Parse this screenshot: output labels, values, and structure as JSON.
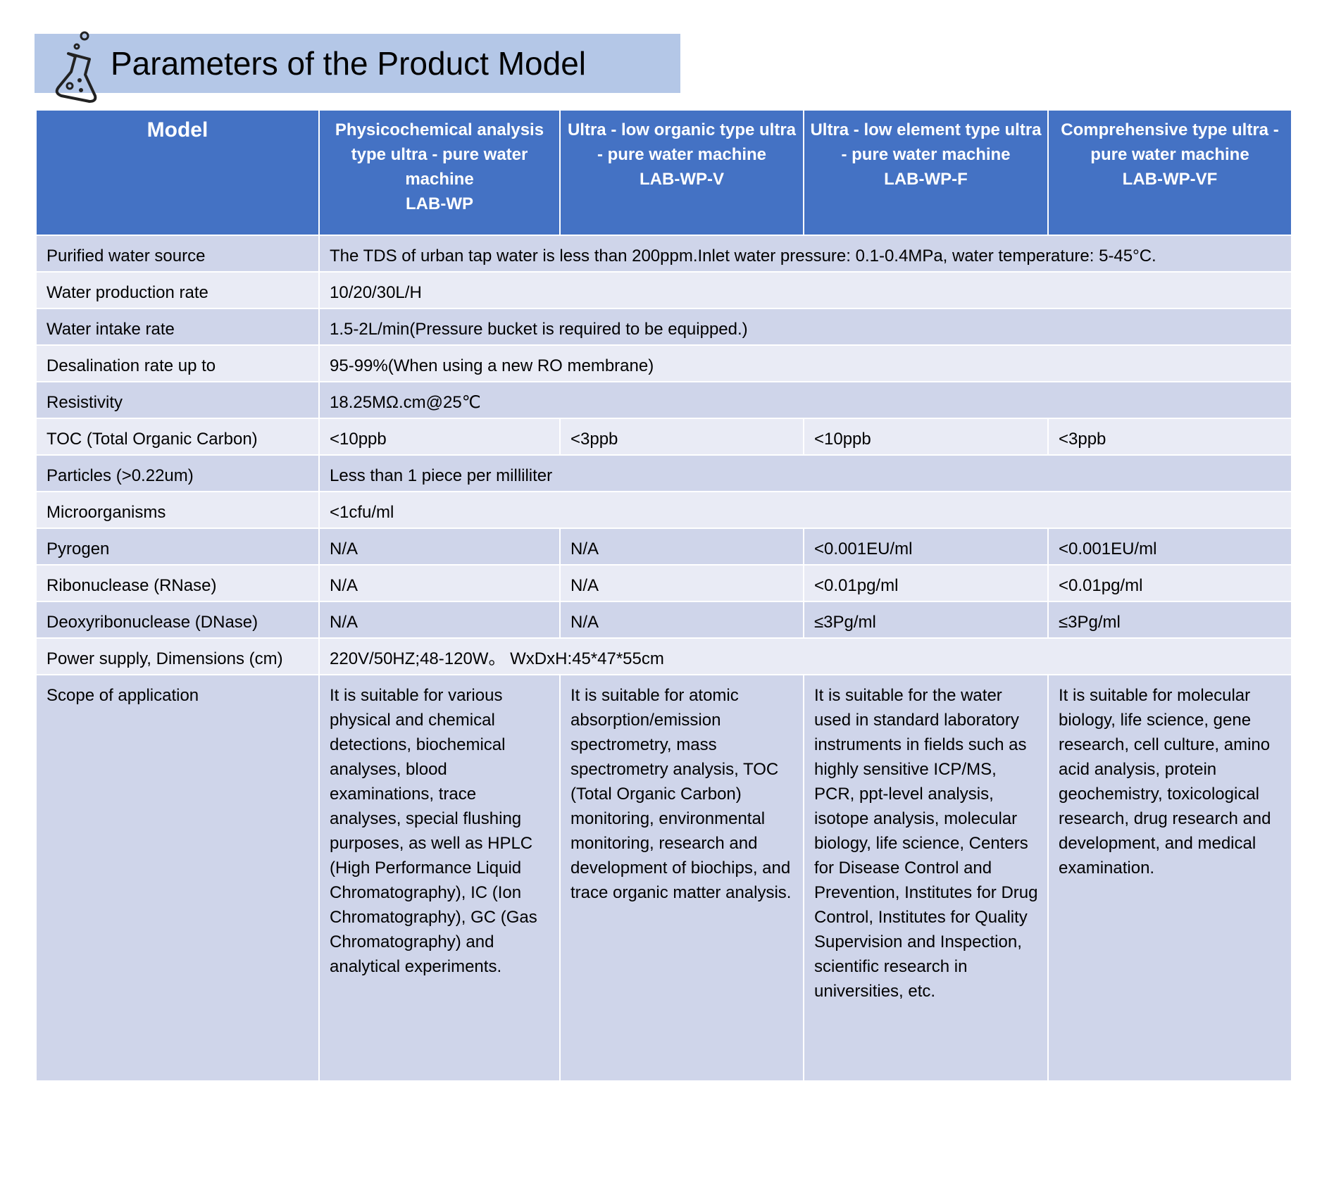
{
  "header": {
    "title": "Parameters of the Product Model"
  },
  "table": {
    "columns": [
      {
        "name": "Model"
      },
      {
        "name": "Physicochemical analysis type ultra - pure water machine",
        "model": "LAB-WP"
      },
      {
        "name": "Ultra - low organic type ultra - pure water machine",
        "model": "LAB-WP-V"
      },
      {
        "name": "Ultra - low element type ultra - pure water machine",
        "model": "LAB-WP-F"
      },
      {
        "name": "Comprehensive type ultra - pure water machine",
        "model": "LAB-WP-VF"
      }
    ],
    "rows": [
      {
        "label": "Purified water source",
        "cells": [
          "The TDS of urban tap water is less than 200ppm.Inlet water pressure: 0.1-0.4MPa, water temperature: 5-45°C."
        ]
      },
      {
        "label": "Water production rate",
        "cells": [
          "10/20/30L/H"
        ]
      },
      {
        "label": "Water intake rate",
        "cells": [
          "1.5-2L/min(Pressure bucket is required to be equipped.)"
        ]
      },
      {
        "label": "Desalination rate up to",
        "cells": [
          "95-99%(When using a new RO membrane)"
        ]
      },
      {
        "label": "Resistivity",
        "cells": [
          "18.25MΩ.cm@25℃"
        ]
      },
      {
        "label": "TOC (Total Organic Carbon)",
        "cells": [
          "<10ppb",
          "<3ppb",
          "<10ppb",
          "<3ppb"
        ]
      },
      {
        "label": "Particles (>0.22um)",
        "cells": [
          "Less than 1 piece per milliliter"
        ]
      },
      {
        "label": "Microorganisms",
        "cells": [
          "<1cfu/ml"
        ]
      },
      {
        "label": "Pyrogen",
        "cells": [
          "N/A",
          "N/A",
          "<0.001EU/ml",
          "<0.001EU/ml"
        ]
      },
      {
        "label": "Ribonuclease (RNase)",
        "cells": [
          "N/A",
          "N/A",
          "<0.01pg/ml",
          "<0.01pg/ml"
        ]
      },
      {
        "label": "Deoxyribonuclease (DNase)",
        "cells": [
          "N/A",
          "N/A",
          "≤3Pg/ml",
          "≤3Pg/ml"
        ]
      },
      {
        "label": "Power supply, Dimensions (cm)",
        "cells": [
          "220V/50HZ;48-120W。 WxDxH:45*47*55cm"
        ]
      },
      {
        "label": "Scope of application",
        "cells": [
          "It is suitable for various physical and chemical detections, biochemical analyses, blood examinations, trace analyses, special flushing purposes, as well as HPLC (High Performance Liquid Chromatography), IC (Ion Chromatography), GC (Gas Chromatography) and analytical experiments.",
          "It is suitable for atomic absorption/emission spectrometry, mass spectrometry analysis, TOC (Total Organic Carbon) monitoring, environmental monitoring, research and development of biochips, and trace organic matter analysis.",
          "It is suitable for the water used in standard laboratory instruments in fields such as highly sensitive ICP/MS, PCR, ppt-level analysis, isotope analysis, molecular biology, life science, Centers for Disease Control and Prevention, Institutes for Drug Control, Institutes for Quality Supervision and Inspection, scientific research in universities, etc.",
          "It is suitable for molecular biology, life science, gene research, cell culture, amino acid analysis, protein geochemistry, toxicological research, drug research and development, and medical examination."
        ]
      }
    ]
  }
}
